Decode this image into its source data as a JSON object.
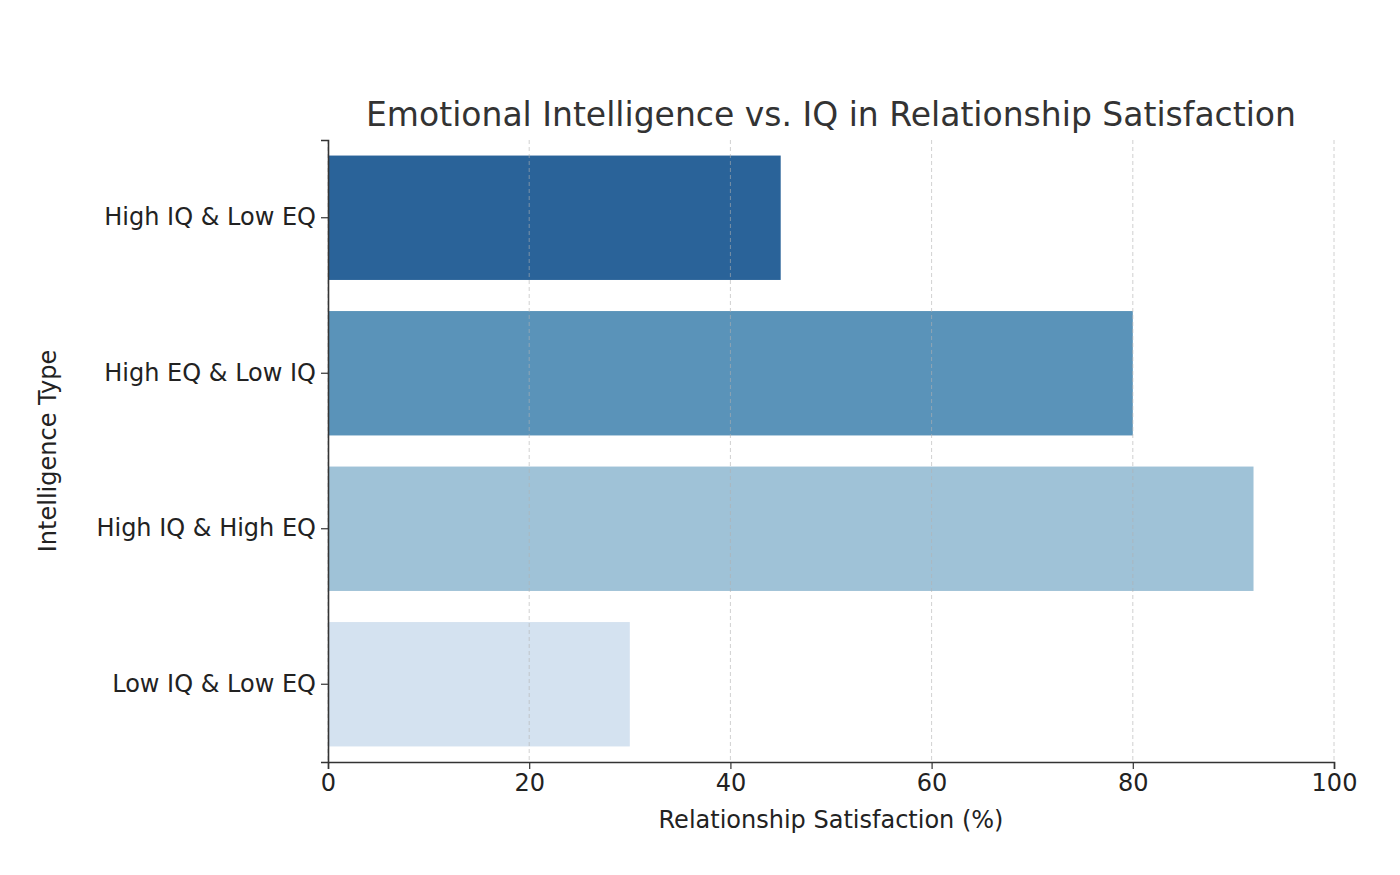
{
  "chart_data": {
    "type": "bar",
    "orientation": "horizontal",
    "title": "Emotional Intelligence vs. IQ in Relationship Satisfaction",
    "x_label": "Relationship Satisfaction (%)",
    "y_label": "Intelligence Type",
    "categories": [
      "High IQ & Low EQ",
      "High EQ & Low IQ",
      "High IQ & High EQ",
      "Low IQ & Low EQ"
    ],
    "values": [
      45,
      80,
      92,
      30
    ],
    "colors": [
      "#2a6399",
      "#5a93b9",
      "#9fc2d7",
      "#d4e2f0"
    ],
    "xlim": [
      0,
      100
    ],
    "xticks": [
      0,
      20,
      40,
      60,
      80,
      100
    ],
    "grid": true
  }
}
